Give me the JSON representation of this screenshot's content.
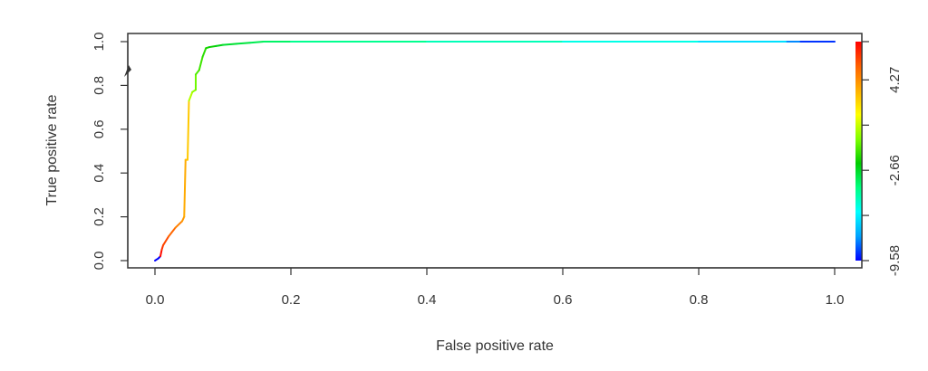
{
  "chart_data": {
    "type": "line",
    "title": "",
    "xlabel": "False positive rate",
    "ylabel": "True positive rate",
    "xlim": [
      0,
      1
    ],
    "ylim": [
      0,
      1
    ],
    "grid": false,
    "x_ticks": [
      "0.0",
      "0.2",
      "0.4",
      "0.6",
      "0.8",
      "1.0"
    ],
    "y_ticks": [
      "0.0",
      "0.2",
      "0.4",
      "0.6",
      "0.8",
      "1.0"
    ],
    "series": [
      {
        "x": [
          0.0,
          0.005,
          0.008,
          0.01,
          0.012,
          0.02,
          0.03,
          0.04,
          0.043,
          0.045,
          0.048,
          0.05,
          0.055,
          0.06,
          0.06,
          0.065,
          0.07,
          0.075,
          0.08,
          0.09,
          0.1,
          0.12,
          0.14,
          0.16,
          0.2,
          0.4,
          0.6,
          0.8,
          0.93,
          0.95,
          1.0
        ],
        "y": [
          0.0,
          0.01,
          0.02,
          0.05,
          0.07,
          0.11,
          0.15,
          0.18,
          0.2,
          0.46,
          0.46,
          0.73,
          0.77,
          0.78,
          0.85,
          0.87,
          0.93,
          0.97,
          0.975,
          0.98,
          0.985,
          0.99,
          0.995,
          1.0,
          1.0,
          1.0,
          1.0,
          1.0,
          1.0,
          1.0,
          1.0
        ],
        "cutoff": [
          -14.0,
          -13.0,
          7.0,
          6.2,
          5.8,
          5.2,
          4.6,
          4.0,
          3.6,
          3.2,
          2.9,
          0.5,
          0.0,
          -0.5,
          -1.0,
          -1.2,
          -1.5,
          -1.8,
          -2.0,
          -2.4,
          -2.8,
          -3.0,
          -3.3,
          -3.6,
          -4.2,
          -4.8,
          -5.5,
          -6.5,
          -8.0,
          -9.0,
          -9.6
        ]
      }
    ],
    "colorbar": {
      "range": [
        -9.58,
        7.2
      ],
      "labels": [
        "4.27",
        "-2.66",
        "-9.58"
      ],
      "label_values": [
        4.27,
        -2.66,
        -9.58
      ],
      "tick_values": [
        7.2,
        4.27,
        0.8,
        -2.66,
        -6.12,
        -9.58
      ],
      "colors": [
        "#0000ff",
        "#00a2ff",
        "#00ffff",
        "#00ff80",
        "#00cc00",
        "#80ff00",
        "#ffff00",
        "#ffb000",
        "#ff6000",
        "#ff0000"
      ]
    }
  }
}
